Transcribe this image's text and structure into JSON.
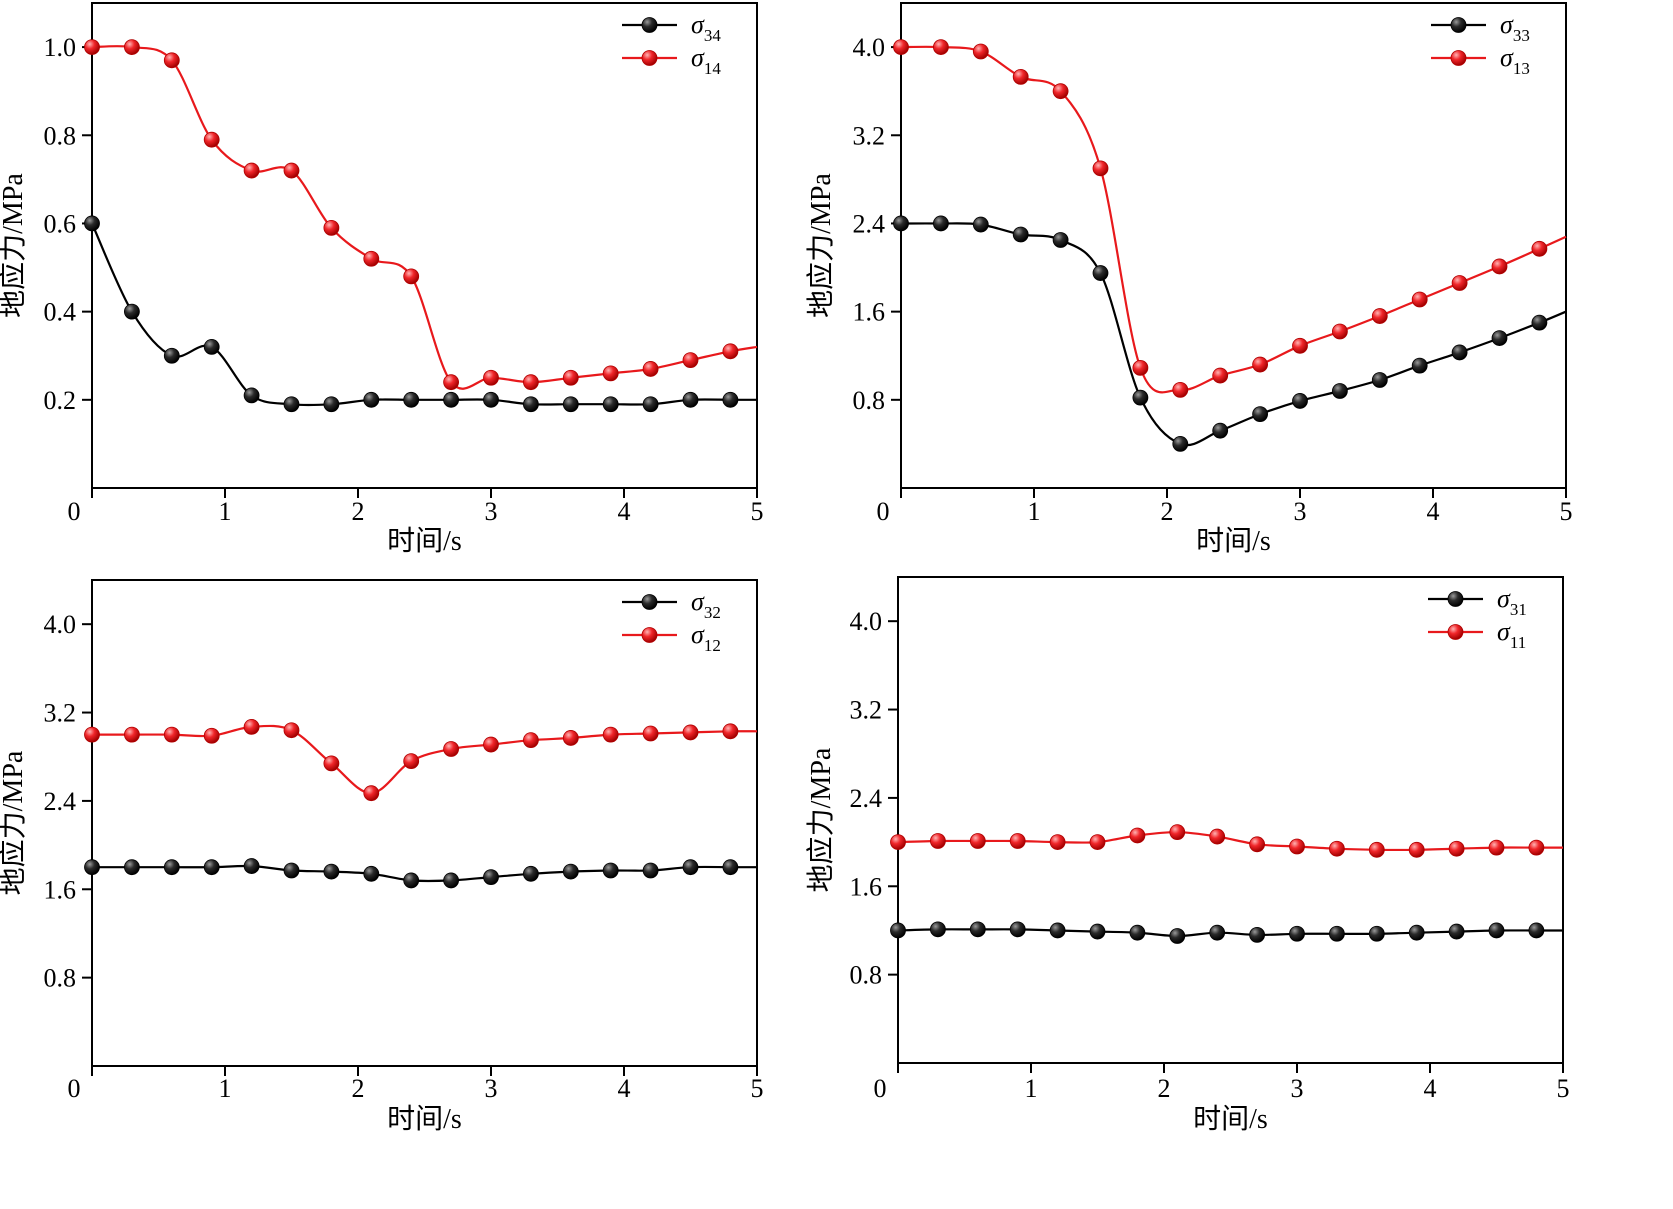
{
  "colors": {
    "black_series": "#000000",
    "red_series": "#e8191c"
  },
  "chart_data": [
    {
      "type": "line",
      "xlabel": "时间/s",
      "ylabel": "地应力/MPa",
      "xlim": [
        0,
        5
      ],
      "ylim": [
        0,
        1.1
      ],
      "xticks": [
        "0",
        "1",
        "2",
        "3",
        "4",
        "5"
      ],
      "yticks": [
        "0.2",
        "0.4",
        "0.6",
        "0.8",
        "1.0"
      ],
      "ytick_values": [
        0.2,
        0.4,
        0.6,
        0.8,
        1.0
      ],
      "legend_position": "top-right",
      "series": [
        {
          "name": "σ34",
          "sym": "σ",
          "sub": "34",
          "color": "#000000",
          "x": [
            0,
            0.3,
            0.6,
            0.9,
            1.2,
            1.5,
            1.8,
            2.1,
            2.4,
            2.7,
            3.0,
            3.3,
            3.6,
            3.9,
            4.2,
            4.5,
            4.8,
            5.0
          ],
          "y": [
            0.6,
            0.4,
            0.3,
            0.32,
            0.21,
            0.19,
            0.19,
            0.2,
            0.2,
            0.2,
            0.2,
            0.19,
            0.19,
            0.19,
            0.19,
            0.2,
            0.2,
            0.2
          ]
        },
        {
          "name": "σ14",
          "sym": "σ",
          "sub": "14",
          "color": "#e8191c",
          "x": [
            0,
            0.3,
            0.6,
            0.9,
            1.2,
            1.5,
            1.8,
            2.1,
            2.4,
            2.7,
            3.0,
            3.3,
            3.6,
            3.9,
            4.2,
            4.5,
            4.8,
            5.0
          ],
          "y": [
            1.0,
            1.0,
            0.97,
            0.79,
            0.72,
            0.72,
            0.59,
            0.52,
            0.48,
            0.24,
            0.25,
            0.24,
            0.25,
            0.26,
            0.27,
            0.29,
            0.31,
            0.32
          ]
        }
      ]
    },
    {
      "type": "line",
      "xlabel": "时间/s",
      "ylabel": "地应力/MPa",
      "xlim": [
        0,
        5
      ],
      "ylim": [
        0,
        4.4
      ],
      "xticks": [
        "0",
        "1",
        "2",
        "3",
        "4",
        "5"
      ],
      "yticks": [
        "0.8",
        "1.6",
        "2.4",
        "3.2",
        "4.0"
      ],
      "ytick_values": [
        0.8,
        1.6,
        2.4,
        3.2,
        4.0
      ],
      "legend_position": "top-right",
      "series": [
        {
          "name": "σ33",
          "sym": "σ",
          "sub": "33",
          "color": "#000000",
          "x": [
            0,
            0.3,
            0.6,
            0.9,
            1.2,
            1.5,
            1.8,
            2.1,
            2.4,
            2.7,
            3.0,
            3.3,
            3.6,
            3.9,
            4.2,
            4.5,
            4.8,
            5.0
          ],
          "y": [
            2.4,
            2.4,
            2.39,
            2.3,
            2.25,
            1.95,
            0.82,
            0.4,
            0.52,
            0.67,
            0.79,
            0.88,
            0.98,
            1.11,
            1.23,
            1.36,
            1.5,
            1.6
          ]
        },
        {
          "name": "σ13",
          "sym": "σ",
          "sub": "13",
          "color": "#e8191c",
          "x": [
            0,
            0.3,
            0.6,
            0.9,
            1.2,
            1.5,
            1.8,
            2.1,
            2.4,
            2.7,
            3.0,
            3.3,
            3.6,
            3.9,
            4.2,
            4.5,
            4.8,
            5.0
          ],
          "y": [
            4.0,
            4.0,
            3.96,
            3.73,
            3.6,
            2.9,
            1.09,
            0.89,
            1.02,
            1.12,
            1.29,
            1.42,
            1.56,
            1.71,
            1.86,
            2.01,
            2.17,
            2.28
          ]
        }
      ]
    },
    {
      "type": "line",
      "xlabel": "时间/s",
      "ylabel": "地应力/MPa",
      "xlim": [
        0,
        5
      ],
      "ylim": [
        0,
        4.4
      ],
      "xticks": [
        "0",
        "1",
        "2",
        "3",
        "4",
        "5"
      ],
      "yticks": [
        "0.8",
        "1.6",
        "2.4",
        "3.2",
        "4.0"
      ],
      "ytick_values": [
        0.8,
        1.6,
        2.4,
        3.2,
        4.0
      ],
      "legend_position": "top-right",
      "series": [
        {
          "name": "σ32",
          "sym": "σ",
          "sub": "32",
          "color": "#000000",
          "x": [
            0,
            0.3,
            0.6,
            0.9,
            1.2,
            1.5,
            1.8,
            2.1,
            2.4,
            2.7,
            3.0,
            3.3,
            3.6,
            3.9,
            4.2,
            4.5,
            4.8,
            5.0
          ],
          "y": [
            1.8,
            1.8,
            1.8,
            1.8,
            1.81,
            1.77,
            1.76,
            1.74,
            1.68,
            1.68,
            1.71,
            1.74,
            1.76,
            1.77,
            1.77,
            1.8,
            1.8,
            1.8
          ]
        },
        {
          "name": "σ12",
          "sym": "σ",
          "sub": "12",
          "color": "#e8191c",
          "x": [
            0,
            0.3,
            0.6,
            0.9,
            1.2,
            1.5,
            1.8,
            2.1,
            2.4,
            2.7,
            3.0,
            3.3,
            3.6,
            3.9,
            4.2,
            4.5,
            4.8,
            5.0
          ],
          "y": [
            3.0,
            3.0,
            3.0,
            2.99,
            3.07,
            3.04,
            2.74,
            2.47,
            2.76,
            2.87,
            2.91,
            2.95,
            2.97,
            3.0,
            3.01,
            3.02,
            3.03,
            3.03
          ]
        }
      ]
    },
    {
      "type": "line",
      "xlabel": "时间/s",
      "ylabel": "地应力/MPa",
      "xlim": [
        0,
        5
      ],
      "ylim": [
        0,
        4.4
      ],
      "xticks": [
        "0",
        "1",
        "2",
        "3",
        "4",
        "5"
      ],
      "yticks": [
        "0.8",
        "1.6",
        "2.4",
        "3.2",
        "4.0"
      ],
      "ytick_values": [
        0.8,
        1.6,
        2.4,
        3.2,
        4.0
      ],
      "legend_position": "top-right",
      "series": [
        {
          "name": "σ31",
          "sym": "σ",
          "sub": "31",
          "color": "#000000",
          "x": [
            0,
            0.3,
            0.6,
            0.9,
            1.2,
            1.5,
            1.8,
            2.1,
            2.4,
            2.7,
            3.0,
            3.3,
            3.6,
            3.9,
            4.2,
            4.5,
            4.8,
            5.0
          ],
          "y": [
            1.2,
            1.21,
            1.21,
            1.21,
            1.2,
            1.19,
            1.18,
            1.15,
            1.18,
            1.16,
            1.17,
            1.17,
            1.17,
            1.18,
            1.19,
            1.2,
            1.2,
            1.2
          ]
        },
        {
          "name": "σ11",
          "sym": "σ",
          "sub": "11",
          "color": "#e8191c",
          "x": [
            0,
            0.3,
            0.6,
            0.9,
            1.2,
            1.5,
            1.8,
            2.1,
            2.4,
            2.7,
            3.0,
            3.3,
            3.6,
            3.9,
            4.2,
            4.5,
            4.8,
            5.0
          ],
          "y": [
            2.0,
            2.01,
            2.01,
            2.01,
            2.0,
            2.0,
            2.06,
            2.09,
            2.05,
            1.98,
            1.96,
            1.94,
            1.93,
            1.93,
            1.94,
            1.95,
            1.95,
            1.95
          ]
        }
      ]
    }
  ]
}
